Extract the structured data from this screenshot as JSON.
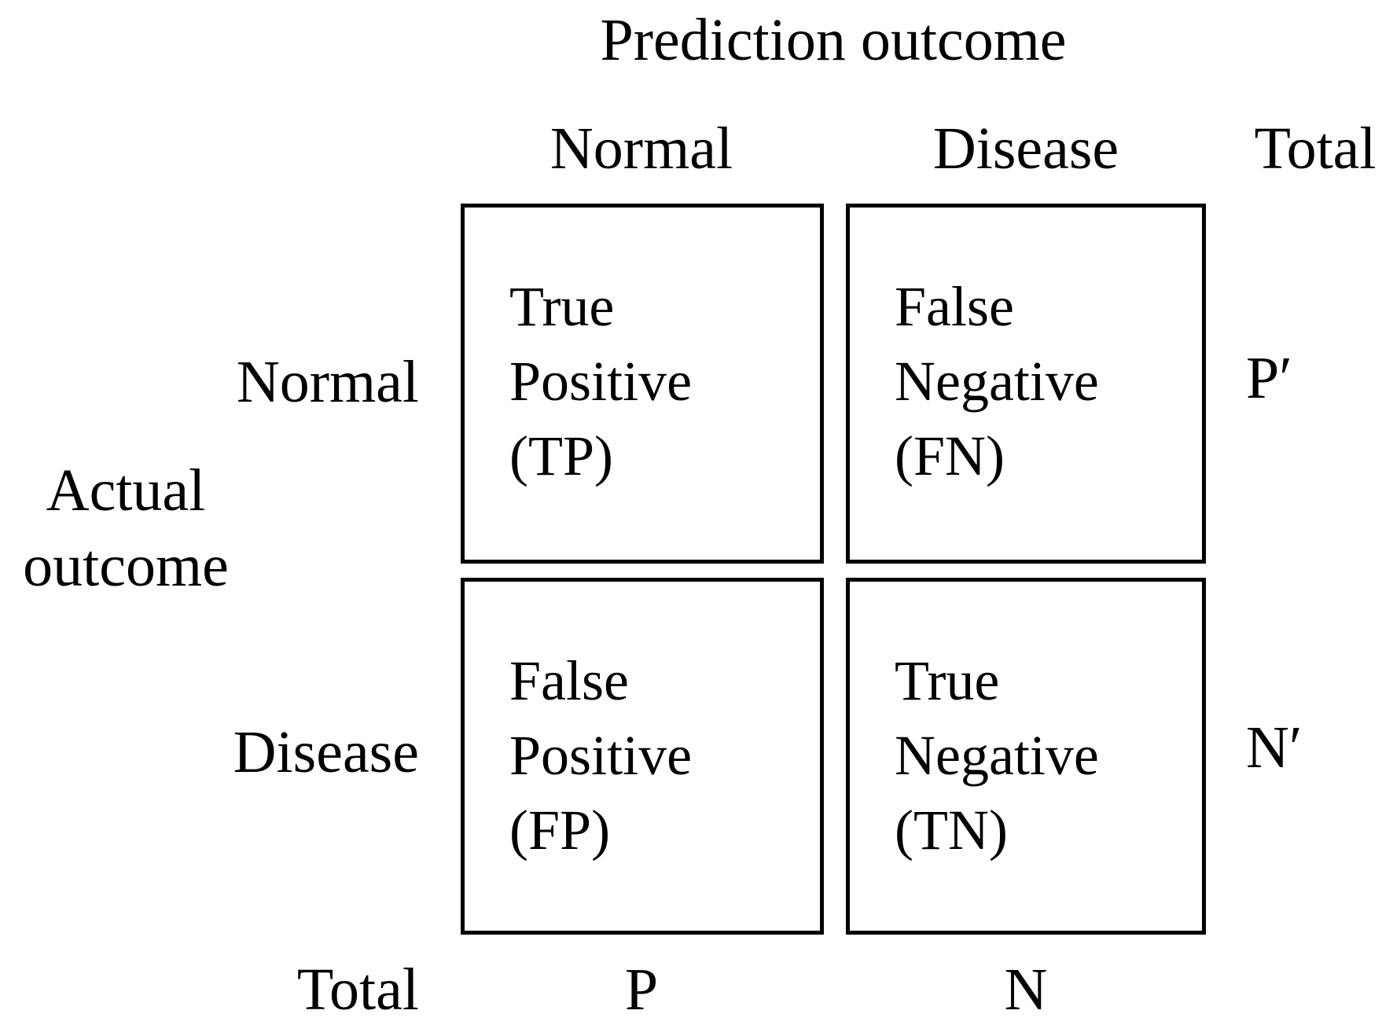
{
  "title": "Prediction outcome",
  "columns": {
    "col1": "Normal",
    "col2": "Disease",
    "total": "Total"
  },
  "rows": {
    "axis_line1": "Actual",
    "axis_line2": "outcome",
    "row1": "Normal",
    "row2": "Disease"
  },
  "cells": {
    "tp": {
      "line1": "True",
      "line2": "Positive",
      "line3": "(TP)"
    },
    "fn": {
      "line1": "False",
      "line2": "Negative",
      "line3": "(FN)"
    },
    "fp": {
      "line1": "False",
      "line2": "Positive",
      "line3": "(FP)"
    },
    "tn": {
      "line1": "True",
      "line2": "Negative",
      "line3": "(TN)"
    }
  },
  "totals": {
    "row1_total": "P′",
    "row2_total": "N′",
    "footer_label": "Total",
    "col1_total": "P",
    "col2_total": "N"
  },
  "colors": {
    "text": "#000000",
    "background": "#ffffff",
    "cell_border": "#000000"
  }
}
